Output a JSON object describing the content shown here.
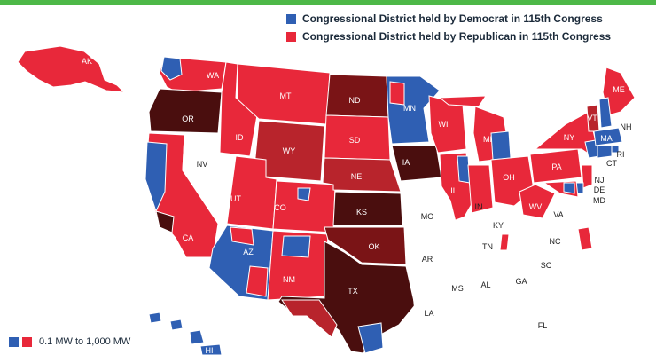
{
  "legend": {
    "democrat": {
      "label": "Congressional District held by Democrat in 115th Congress",
      "color": "#2f5fb3"
    },
    "republican": {
      "label": "Congressional District held by Republican in 115th Congress",
      "color": "#e8283a"
    }
  },
  "scale": {
    "range_label": "0.1 MW to 1,000 MW"
  },
  "colors": {
    "empty": "#ffffff",
    "red_light": "#e8283a",
    "red_mid": "#b8242c",
    "red_dark": "#7a1416",
    "red_darkest": "#4a0e0e",
    "blue": "#2f5fb3"
  },
  "states": [
    {
      "code": "WA",
      "party": "mixed",
      "fill": "red_light"
    },
    {
      "code": "OR",
      "party": "republican",
      "fill": "red_darkest"
    },
    {
      "code": "CA",
      "party": "mixed",
      "fill": "red_light"
    },
    {
      "code": "NV",
      "party": "none",
      "fill": "empty"
    },
    {
      "code": "ID",
      "party": "republican",
      "fill": "red_light"
    },
    {
      "code": "MT",
      "party": "republican",
      "fill": "red_light"
    },
    {
      "code": "WY",
      "party": "republican",
      "fill": "red_mid"
    },
    {
      "code": "UT",
      "party": "republican",
      "fill": "red_light"
    },
    {
      "code": "CO",
      "party": "republican",
      "fill": "red_light"
    },
    {
      "code": "AZ",
      "party": "mixed",
      "fill": "blue"
    },
    {
      "code": "NM",
      "party": "republican",
      "fill": "red_light"
    },
    {
      "code": "ND",
      "party": "republican",
      "fill": "red_dark"
    },
    {
      "code": "SD",
      "party": "republican",
      "fill": "red_light"
    },
    {
      "code": "NE",
      "party": "republican",
      "fill": "red_mid"
    },
    {
      "code": "KS",
      "party": "republican",
      "fill": "red_darkest"
    },
    {
      "code": "OK",
      "party": "republican",
      "fill": "red_dark"
    },
    {
      "code": "TX",
      "party": "republican",
      "fill": "red_darkest"
    },
    {
      "code": "MN",
      "party": "democrat",
      "fill": "blue"
    },
    {
      "code": "IA",
      "party": "republican",
      "fill": "red_darkest"
    },
    {
      "code": "MO",
      "party": "none",
      "fill": "empty"
    },
    {
      "code": "AR",
      "party": "none",
      "fill": "empty"
    },
    {
      "code": "LA",
      "party": "none",
      "fill": "empty"
    },
    {
      "code": "WI",
      "party": "republican",
      "fill": "red_light"
    },
    {
      "code": "IL",
      "party": "republican",
      "fill": "red_light"
    },
    {
      "code": "MI",
      "party": "republican",
      "fill": "red_light"
    },
    {
      "code": "IN",
      "party": "republican",
      "fill": "red_light"
    },
    {
      "code": "OH",
      "party": "republican",
      "fill": "red_light"
    },
    {
      "code": "KY",
      "party": "none",
      "fill": "empty"
    },
    {
      "code": "TN",
      "party": "none",
      "fill": "empty"
    },
    {
      "code": "MS",
      "party": "none",
      "fill": "empty"
    },
    {
      "code": "AL",
      "party": "none",
      "fill": "empty"
    },
    {
      "code": "GA",
      "party": "none",
      "fill": "empty"
    },
    {
      "code": "FL",
      "party": "none",
      "fill": "empty"
    },
    {
      "code": "SC",
      "party": "none",
      "fill": "empty"
    },
    {
      "code": "NC",
      "party": "none",
      "fill": "empty"
    },
    {
      "code": "VA",
      "party": "none",
      "fill": "empty"
    },
    {
      "code": "WV",
      "party": "republican",
      "fill": "red_light"
    },
    {
      "code": "PA",
      "party": "republican",
      "fill": "red_light"
    },
    {
      "code": "NY",
      "party": "republican",
      "fill": "red_light"
    },
    {
      "code": "VT",
      "party": "republican",
      "fill": "red_mid"
    },
    {
      "code": "ME",
      "party": "republican",
      "fill": "red_light"
    },
    {
      "code": "NH",
      "party": "democrat",
      "fill": "blue"
    },
    {
      "code": "MA",
      "party": "democrat",
      "fill": "blue"
    },
    {
      "code": "RI",
      "party": "democrat",
      "fill": "blue"
    },
    {
      "code": "CT",
      "party": "democrat",
      "fill": "blue"
    },
    {
      "code": "NJ",
      "party": "republican",
      "fill": "red_light"
    },
    {
      "code": "DE",
      "party": "democrat",
      "fill": "blue"
    },
    {
      "code": "MD",
      "party": "mixed",
      "fill": "red_light"
    },
    {
      "code": "AK",
      "party": "republican",
      "fill": "red_light"
    },
    {
      "code": "HI",
      "party": "democrat",
      "fill": "blue"
    }
  ]
}
